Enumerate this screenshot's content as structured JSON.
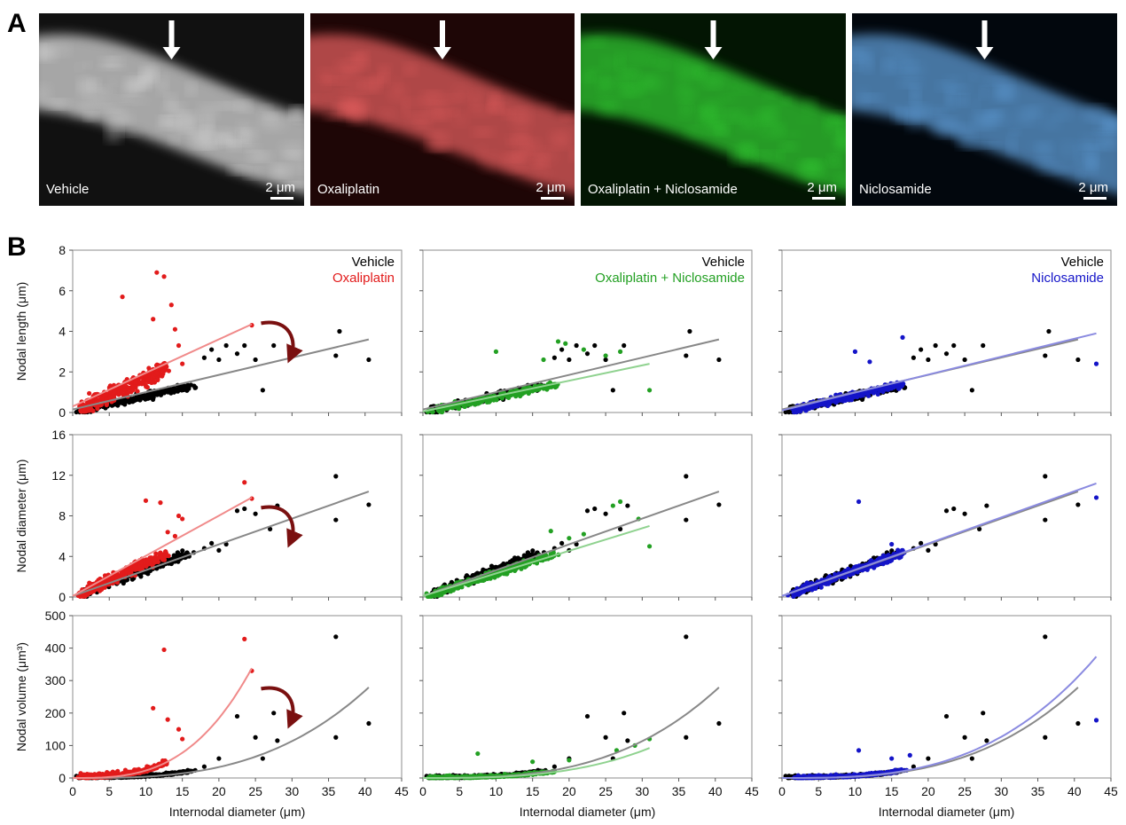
{
  "panel_labels": {
    "a": "A",
    "b": "B"
  },
  "micrographs": [
    {
      "caption": "Vehicle",
      "scalebar": "2 μm",
      "tint": "#d8d8d8",
      "bg": "#111111"
    },
    {
      "caption": "Oxaliplatin",
      "scalebar": "2 μm",
      "tint": "#e05d5d",
      "bg": "#1e0606"
    },
    {
      "caption": "Oxaliplatin + Niclosamide",
      "scalebar": "2 μm",
      "tint": "#31c831",
      "bg": "#031503"
    },
    {
      "caption": "Niclosamide",
      "scalebar": "2 μm",
      "tint": "#5d9ad3",
      "bg": "#02070d"
    }
  ],
  "colors": {
    "vehicle": "#000000",
    "oxaliplatin": "#e21b1b",
    "combo": "#23a023",
    "niclosamide": "#1414c8",
    "vehicle_fit": "#888888"
  },
  "axis_labels": {
    "x": "Internodal diameter (μm)",
    "y_length": "Nodal length (μm)",
    "y_diameter": "Nodal diameter (μm)",
    "y_volume": "Nodal volume (μm³)"
  },
  "chart_data": {
    "type": "scatter",
    "rows": [
      {
        "ylabel": "Nodal length (μm)",
        "ylim": [
          0,
          8
        ],
        "yticks": [
          0,
          2,
          4,
          6,
          8
        ]
      },
      {
        "ylabel": "Nodal diameter (μm)",
        "ylim": [
          0,
          16
        ],
        "yticks": [
          0,
          4,
          8,
          12,
          16
        ]
      },
      {
        "ylabel": "Nodal volume (μm³)",
        "ylim": [
          0,
          500
        ],
        "yticks": [
          0,
          100,
          200,
          300,
          400,
          500
        ]
      }
    ],
    "columns": [
      {
        "legend": [
          "Vehicle",
          "Oxaliplatin"
        ],
        "treatment": "oxaliplatin"
      },
      {
        "legend": [
          "Vehicle",
          "Oxaliplatin + Niclosamide"
        ],
        "treatment": "combo"
      },
      {
        "legend": [
          "Vehicle",
          "Niclosamide"
        ],
        "treatment": "niclosamide"
      }
    ],
    "xlabel": "Internodal diameter (μm)",
    "xlim": [
      0,
      45
    ],
    "xticks": [
      0,
      5,
      10,
      15,
      20,
      25,
      30,
      35,
      40,
      45
    ],
    "vehicle_outliers": {
      "length": [
        [
          18,
          2.7
        ],
        [
          19,
          3.1
        ],
        [
          20,
          2.6
        ],
        [
          21,
          3.3
        ],
        [
          22.5,
          2.9
        ],
        [
          23.5,
          3.3
        ],
        [
          25,
          2.6
        ],
        [
          26,
          1.1
        ],
        [
          27.5,
          3.3
        ],
        [
          36,
          2.8
        ],
        [
          36.5,
          4.0
        ],
        [
          40.5,
          2.6
        ]
      ],
      "diameter": [
        [
          18,
          4.8
        ],
        [
          19,
          5.3
        ],
        [
          20,
          4.6
        ],
        [
          21,
          5.2
        ],
        [
          22.5,
          8.5
        ],
        [
          23.5,
          8.7
        ],
        [
          25,
          8.2
        ],
        [
          27,
          6.7
        ],
        [
          28,
          9.0
        ],
        [
          36,
          11.9
        ],
        [
          36,
          7.6
        ],
        [
          40.5,
          9.1
        ]
      ],
      "volume": [
        [
          18,
          35
        ],
        [
          20,
          60
        ],
        [
          22.5,
          190
        ],
        [
          25,
          125
        ],
        [
          26,
          60
        ],
        [
          27.5,
          200
        ],
        [
          28,
          115
        ],
        [
          36,
          435
        ],
        [
          36,
          125
        ],
        [
          40.5,
          168
        ]
      ]
    },
    "treatment_outliers": {
      "oxaliplatin": {
        "length": [
          [
            6.8,
            5.7
          ],
          [
            11.5,
            6.9
          ],
          [
            12.5,
            6.7
          ],
          [
            11,
            4.6
          ],
          [
            13.5,
            5.3
          ],
          [
            14,
            4.1
          ],
          [
            24.5,
            4.3
          ],
          [
            15,
            2.4
          ],
          [
            14.5,
            3.3
          ]
        ],
        "diameter": [
          [
            10,
            9.5
          ],
          [
            12,
            9.3
          ],
          [
            14.5,
            8.0
          ],
          [
            15,
            7.7
          ],
          [
            23.5,
            11.3
          ],
          [
            24.5,
            9.7
          ],
          [
            13,
            6.4
          ],
          [
            14,
            6.0
          ]
        ],
        "volume": [
          [
            12.5,
            395
          ],
          [
            11,
            215
          ],
          [
            23.5,
            428
          ],
          [
            24.5,
            330
          ],
          [
            14.5,
            150
          ],
          [
            15,
            120
          ],
          [
            13,
            180
          ]
        ]
      },
      "combo": {
        "length": [
          [
            10,
            3.0
          ],
          [
            18.5,
            3.5
          ],
          [
            19.5,
            3.4
          ],
          [
            22,
            3.1
          ],
          [
            25,
            2.8
          ],
          [
            27,
            3.0
          ],
          [
            31,
            1.1
          ],
          [
            16.5,
            2.6
          ]
        ],
        "diameter": [
          [
            17.5,
            6.5
          ],
          [
            20,
            5.8
          ],
          [
            22,
            6.2
          ],
          [
            26,
            9.0
          ],
          [
            27,
            9.4
          ],
          [
            29.5,
            7.7
          ],
          [
            31,
            5.0
          ]
        ],
        "volume": [
          [
            7.5,
            75
          ],
          [
            15,
            50
          ],
          [
            20,
            55
          ],
          [
            26.5,
            85
          ],
          [
            29,
            100
          ],
          [
            31,
            120
          ]
        ]
      },
      "niclosamide": {
        "length": [
          [
            16.5,
            3.7
          ],
          [
            10,
            3.0
          ],
          [
            12,
            2.5
          ],
          [
            43,
            2.4
          ]
        ],
        "diameter": [
          [
            10.5,
            9.4
          ],
          [
            15,
            5.2
          ],
          [
            16.5,
            4.6
          ],
          [
            43,
            9.8
          ]
        ],
        "volume": [
          [
            10.5,
            85
          ],
          [
            15,
            60
          ],
          [
            17.5,
            70
          ],
          [
            43,
            178
          ]
        ]
      }
    },
    "fit_lines": {
      "vehicle": {
        "length": [
          [
            0,
            0.15
          ],
          [
            40.5,
            3.6
          ]
        ],
        "diameter": [
          [
            0,
            0.1
          ],
          [
            40.5,
            10.4
          ]
        ],
        "volume": {
          "a": 0.0042,
          "power": 3,
          "x_end": 40.5
        }
      },
      "oxaliplatin": {
        "length": [
          [
            0,
            0.3
          ],
          [
            24.5,
            4.35
          ]
        ],
        "diameter": [
          [
            0,
            0.1
          ],
          [
            24.5,
            9.8
          ]
        ],
        "volume": {
          "a": 0.023,
          "power": 3,
          "x_end": 24.5
        }
      },
      "combo": {
        "length": [
          [
            0,
            0.05
          ],
          [
            31,
            2.4
          ]
        ],
        "diameter": [
          [
            0,
            0.1
          ],
          [
            31,
            7.0
          ]
        ],
        "volume": {
          "a": 0.0031,
          "power": 3,
          "x_end": 31
        }
      },
      "niclosamide": {
        "length": [
          [
            0,
            0.1
          ],
          [
            43,
            3.9
          ]
        ],
        "diameter": [
          [
            0,
            0.1
          ],
          [
            43,
            11.2
          ]
        ],
        "volume": {
          "a": 0.0047,
          "power": 3,
          "x_end": 43
        }
      }
    }
  }
}
